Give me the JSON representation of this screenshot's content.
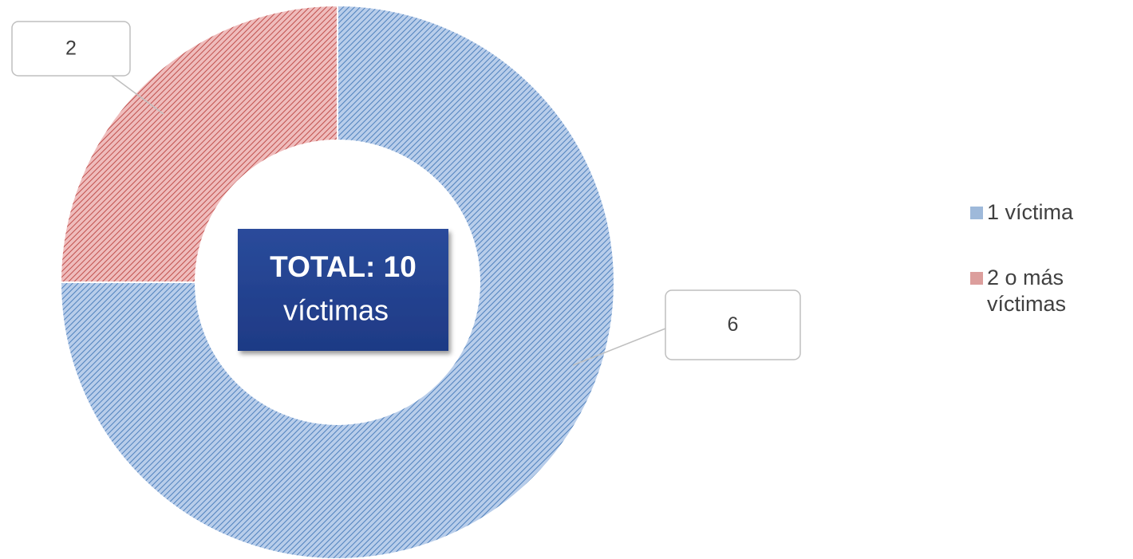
{
  "chart_data": {
    "type": "donut",
    "categories": [
      "1 víctima",
      "2 o más víctimas"
    ],
    "values": [
      6,
      2
    ],
    "colors": [
      "#4f81bd",
      "#c0504d"
    ],
    "annotations": [
      "TOTAL: 10",
      "víctimas"
    ],
    "legend": "right"
  }
}
